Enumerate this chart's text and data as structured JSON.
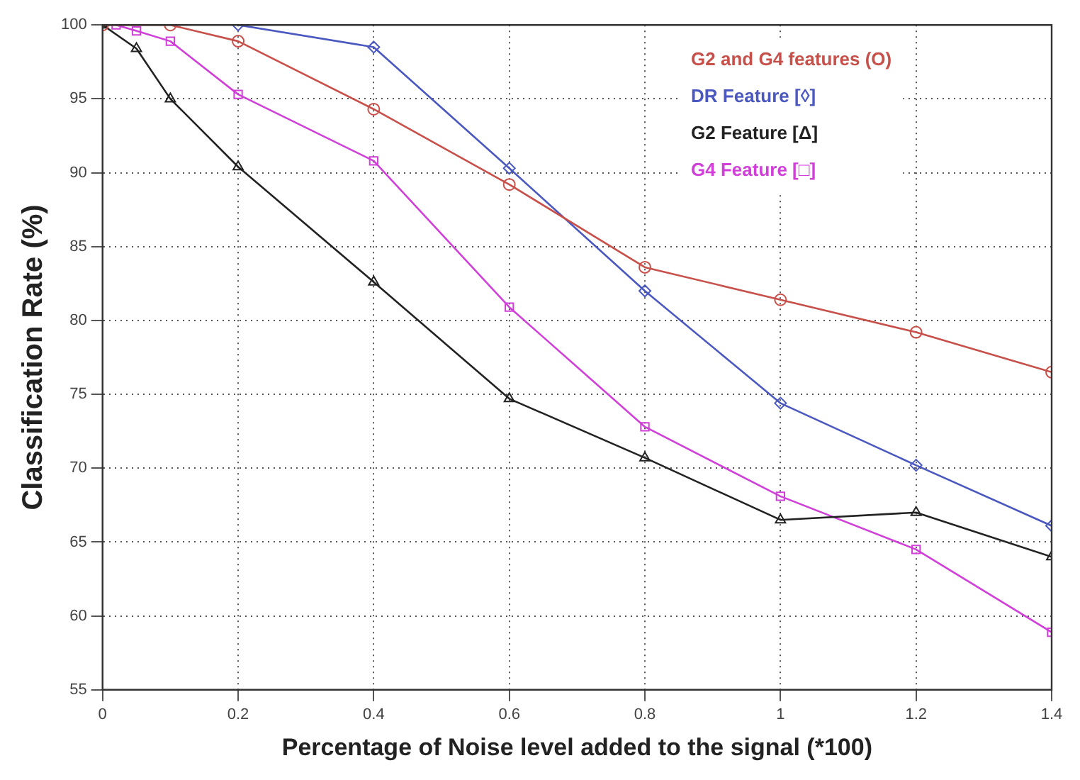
{
  "chart_data": {
    "type": "line",
    "xlabel": "Percentage of Noise level added to the signal (*100)",
    "ylabel": "Classification Rate (%)",
    "xlim": [
      0,
      1.4
    ],
    "xticks": [
      0,
      0.2,
      0.4,
      0.6,
      0.8,
      1,
      1.2,
      1.4
    ],
    "ylim": [
      55,
      100
    ],
    "yticks": [
      55,
      60,
      65,
      70,
      75,
      80,
      85,
      90,
      95,
      100
    ],
    "grid": true,
    "legend": "top right",
    "line_style": "solid",
    "series": [
      {
        "name": "G2 and G4 features (O)",
        "color": "#c8504a",
        "marker": "circle",
        "x": [
          0,
          0.1,
          0.2,
          0.4,
          0.6,
          0.8,
          1,
          1.2,
          1.4
        ],
        "values": [
          100,
          100,
          98.9,
          94.3,
          89.2,
          83.6,
          81.4,
          79.2,
          76.5
        ]
      },
      {
        "name": "DR Feature [◊]",
        "color": "#4a58c0",
        "marker": "diamond",
        "x": [
          0.2,
          0.4,
          0.6,
          0.8,
          1,
          1.2,
          1.4
        ],
        "values": [
          100,
          98.5,
          90.3,
          82,
          74.4,
          70.2,
          66.1
        ]
      },
      {
        "name": "G2 Feature [Δ]",
        "color": "#222222",
        "marker": "triangle",
        "x": [
          0,
          0.05,
          0.1,
          0.2,
          0.4,
          0.6,
          0.8,
          1,
          1.2,
          1.4
        ],
        "values": [
          100,
          98.4,
          95,
          90.4,
          82.6,
          74.7,
          70.7,
          66.5,
          67,
          64
        ]
      },
      {
        "name": "G4 Feature [□]",
        "color": "#d040d8",
        "marker": "square",
        "x": [
          0.02,
          0.05,
          0.1,
          0.2,
          0.4,
          0.6,
          0.8,
          1,
          1.2,
          1.4
        ],
        "values": [
          100,
          99.6,
          98.9,
          95.3,
          90.8,
          80.9,
          72.8,
          68.1,
          64.5,
          58.9
        ]
      }
    ]
  }
}
